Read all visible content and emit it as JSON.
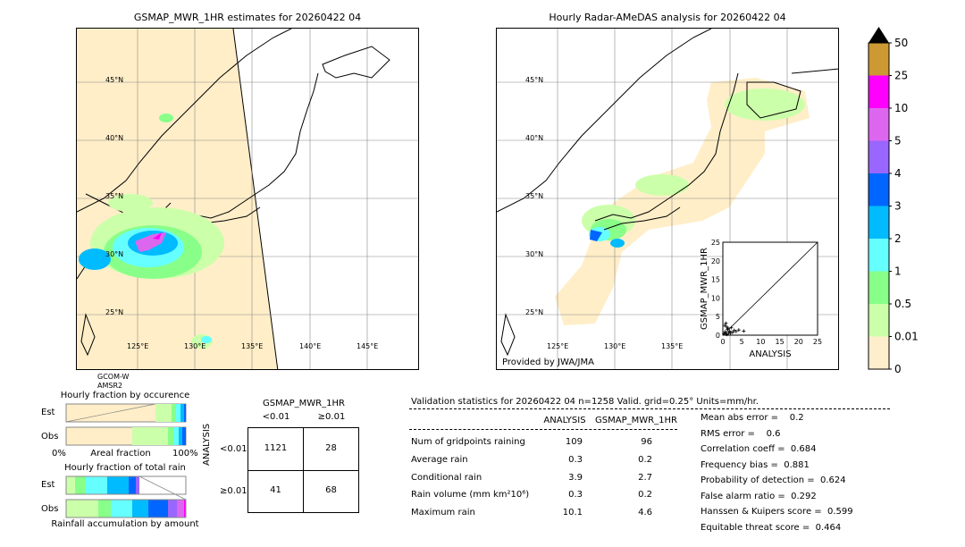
{
  "left_map": {
    "title": "GSMAP_MWR_1HR estimates for 20260422 04",
    "lat_labels": [
      "45°N",
      "40°N",
      "35°N",
      "30°N",
      "25°N"
    ],
    "lon_labels": [
      "125°E",
      "130°E",
      "135°E",
      "140°E",
      "145°E"
    ],
    "satellite_label": "GCOM-W\nAMSR2"
  },
  "right_map": {
    "title": "Hourly Radar-AMeDAS analysis for 20260422 04",
    "lat_labels": [
      "45°N",
      "40°N",
      "35°N",
      "30°N",
      "25°N"
    ],
    "lon_labels": [
      "125°E",
      "130°E",
      "135°E"
    ],
    "credit": "Provided by JWA/JMA",
    "inset": {
      "xlabel": "ANALYSIS",
      "ylabel": "GSMAP_MWR_1HR",
      "ticks": [
        "0",
        "5",
        "10",
        "15",
        "20",
        "25"
      ]
    }
  },
  "colorbar": {
    "labels": [
      "50",
      "25",
      "10",
      "5",
      "4",
      "3",
      "2",
      "1",
      "0.5",
      "0.01",
      "0"
    ],
    "colors": [
      "#cc9933",
      "#ff00ff",
      "#dd66ee",
      "#9966ff",
      "#0066ff",
      "#00bbff",
      "#66ffff",
      "#88ff88",
      "#ccffaa",
      "#ffeecc"
    ]
  },
  "fraction_occurrence": {
    "title": "Hourly fraction by occurence",
    "row_labels": [
      "Est",
      "Obs"
    ],
    "axis_left": "0%",
    "axis_mid": "Areal fraction",
    "axis_right": "100%"
  },
  "fraction_total": {
    "title": "Hourly fraction of total rain",
    "row_labels": [
      "Est",
      "Obs"
    ],
    "axis_mid": "Rainfall accumulation by amount"
  },
  "contingency": {
    "title": "GSMAP_MWR_1HR",
    "col_headers": [
      "<0.01",
      "≥0.01"
    ],
    "row_headers": [
      "<0.01",
      "≥0.01"
    ],
    "side_label": "ANALYSIS",
    "cells": [
      [
        "1121",
        "28"
      ],
      [
        "41",
        "68"
      ]
    ]
  },
  "validation": {
    "header": "Validation statistics for 20260422 04  n=1258 Valid. grid=0.25° Units=mm/hr.",
    "col_headers": [
      "ANALYSIS",
      "GSMAP_MWR_1HR"
    ],
    "rows": [
      {
        "label": "Num of gridpoints raining",
        "analysis": "109",
        "gsmap": "96"
      },
      {
        "label": "Average rain",
        "analysis": "0.3",
        "gsmap": "0.2"
      },
      {
        "label": "Conditional rain",
        "analysis": "3.9",
        "gsmap": "2.7"
      },
      {
        "label": "Rain volume (mm km²10⁶)",
        "analysis": "0.3",
        "gsmap": "0.2"
      },
      {
        "label": "Maximum rain",
        "analysis": "10.1",
        "gsmap": "4.6"
      }
    ],
    "scores": [
      "Mean abs error =    0.2",
      "RMS error =    0.6",
      "Correlation coeff =  0.684",
      "Frequency bias =  0.881",
      "Probability of detection =  0.624",
      "False alarm ratio =  0.292",
      "Hanssen & Kuipers score =  0.599",
      "Equitable threat score =  0.464"
    ]
  },
  "chart_data": [
    {
      "type": "scatter",
      "title": "",
      "xlabel": "ANALYSIS",
      "ylabel": "GSMAP_MWR_1HR",
      "xlim": [
        0,
        25
      ],
      "ylim": [
        0,
        25
      ],
      "x": [
        0.3,
        0.6,
        0.9,
        1.2,
        1.5,
        1.8,
        2.2,
        2.6,
        3.0,
        3.5,
        0.5,
        1.0,
        1.4,
        2.0,
        4.2,
        5.5,
        0.8,
        1.1
      ],
      "y": [
        0.4,
        0.9,
        0.3,
        1.6,
        0.7,
        1.1,
        2.0,
        0.8,
        1.3,
        1.0,
        2.6,
        2.2,
        1.9,
        0.5,
        1.4,
        1.1,
        3.2,
        0.2
      ]
    }
  ]
}
